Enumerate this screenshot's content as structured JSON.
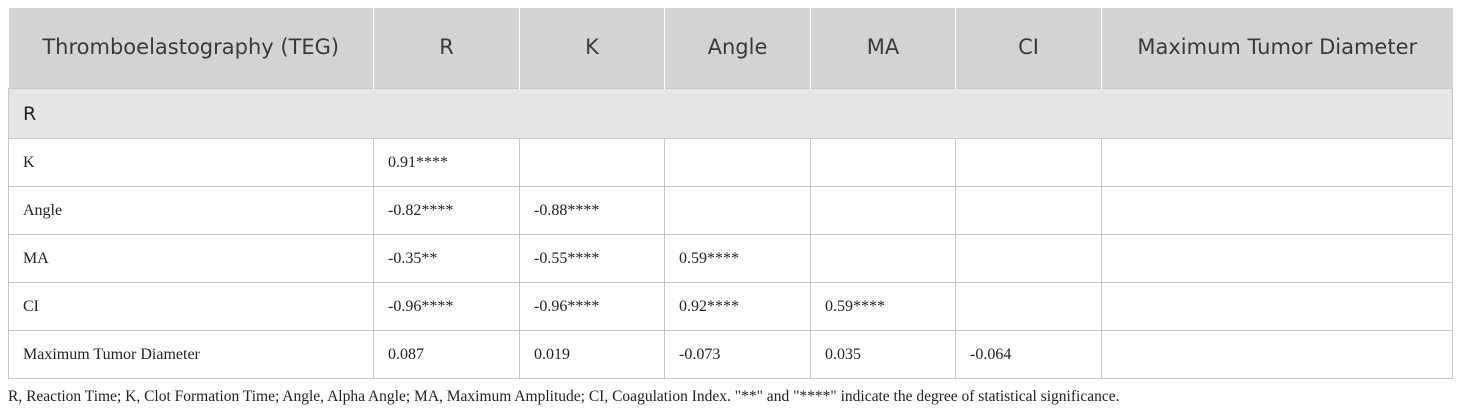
{
  "table": {
    "header": [
      "Thromboelastography (TEG)",
      "R",
      "K",
      "Angle",
      "MA",
      "CI",
      "Maximum Tumor Diameter"
    ],
    "section": "R",
    "rows": [
      {
        "label": "K",
        "cells": [
          "0.91****"
        ]
      },
      {
        "label": "Angle",
        "cells": [
          "-0.82****",
          "-0.88****"
        ]
      },
      {
        "label": "MA",
        "cells": [
          "-0.35**",
          "-0.55****",
          "0.59****"
        ]
      },
      {
        "label": "CI",
        "cells": [
          "-0.96****",
          "-0.96****",
          "0.92****",
          "0.59****"
        ]
      },
      {
        "label": "Maximum Tumor Diameter",
        "cells": [
          "0.087",
          "0.019",
          "-0.073",
          "0.035",
          "-0.064"
        ]
      }
    ]
  },
  "footnote": "R, Reaction Time; K, Clot Formation Time; Angle, Alpha Angle; MA, Maximum Amplitude; CI, Coagulation Index. \"**\" and \"****\" indicate the degree of statistical significance."
}
